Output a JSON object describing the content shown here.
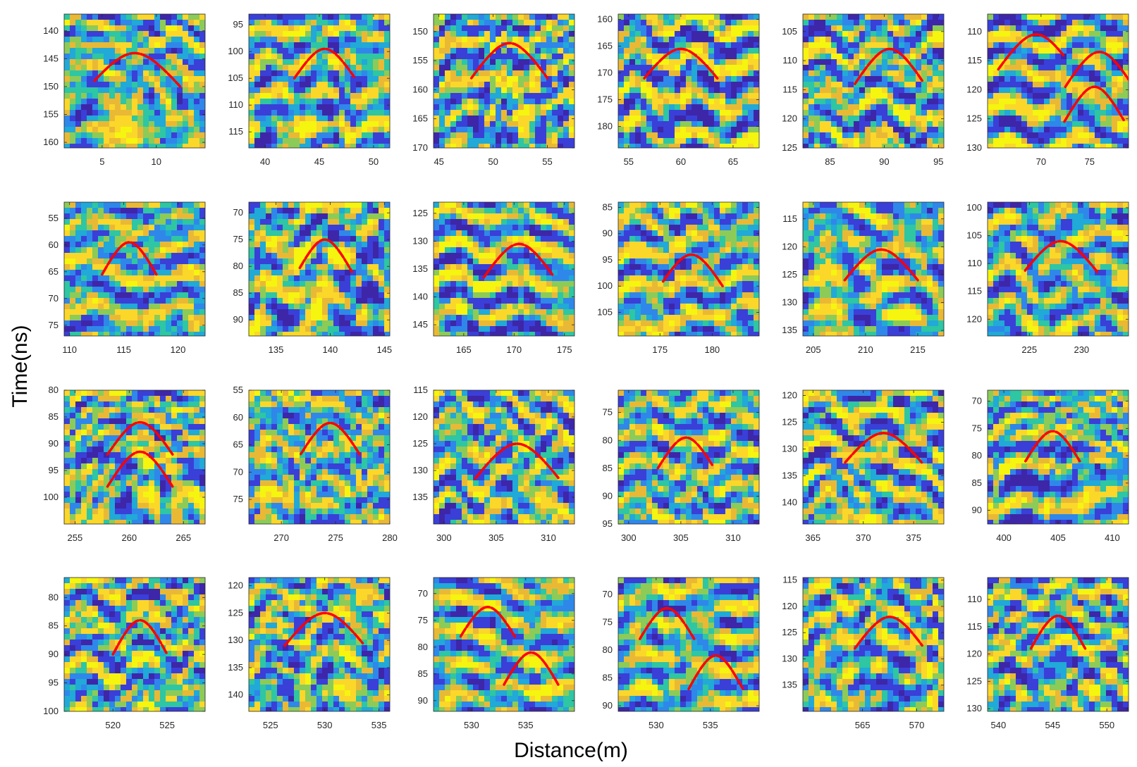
{
  "figure": {
    "xlabel": "Distance(m)",
    "ylabel": "Time(ns)"
  },
  "colors": {
    "curve": "#ff0000",
    "palette": [
      "#3e26a8",
      "#3a3fd8",
      "#2f87ea",
      "#21a9d7",
      "#2ec6a3",
      "#8ccb58",
      "#e9b935",
      "#fbd72a",
      "#f5f50f"
    ]
  },
  "chart_data": [
    {
      "type": "heatmap",
      "row": 0,
      "col": 0,
      "xlim": [
        1.5,
        14.5
      ],
      "ylim": [
        161,
        137
      ],
      "xticks": [
        5,
        10
      ],
      "yticks": [
        140,
        145,
        150,
        155,
        160
      ],
      "curves": [
        {
          "apex_x": 8,
          "apex_y": 144,
          "x_start": 4.3,
          "x_end": 12.2,
          "t_start": 150,
          "t_end": 150
        }
      ]
    },
    {
      "type": "heatmap",
      "row": 0,
      "col": 1,
      "xlim": [
        38.5,
        51.5
      ],
      "ylim": [
        118,
        93
      ],
      "xticks": [
        40,
        45,
        50
      ],
      "yticks": [
        95,
        100,
        105,
        110,
        115
      ],
      "curves": [
        {
          "apex_x": 45.5,
          "apex_y": 99.5,
          "x_start": 42.7,
          "x_end": 48.2,
          "t_start": 105,
          "t_end": 105
        }
      ]
    },
    {
      "type": "heatmap",
      "row": 0,
      "col": 2,
      "xlim": [
        44.5,
        57.5
      ],
      "ylim": [
        170,
        147
      ],
      "xticks": [
        45,
        50,
        55
      ],
      "yticks": [
        150,
        155,
        160,
        165,
        170
      ],
      "curves": [
        {
          "apex_x": 51.5,
          "apex_y": 152,
          "x_start": 48,
          "x_end": 55,
          "t_start": 158,
          "t_end": 158
        }
      ]
    },
    {
      "type": "heatmap",
      "row": 0,
      "col": 3,
      "xlim": [
        54,
        67.5
      ],
      "ylim": [
        184,
        159
      ],
      "xticks": [
        55,
        60,
        65
      ],
      "yticks": [
        160,
        165,
        170,
        175,
        180
      ],
      "curves": [
        {
          "apex_x": 60,
          "apex_y": 165.5,
          "x_start": 56.5,
          "x_end": 63.5,
          "t_start": 171,
          "t_end": 171
        }
      ]
    },
    {
      "type": "heatmap",
      "row": 0,
      "col": 4,
      "xlim": [
        82.5,
        95.5
      ],
      "ylim": [
        125,
        102
      ],
      "xticks": [
        85,
        90,
        95
      ],
      "yticks": [
        105,
        110,
        115,
        120,
        125
      ],
      "curves": [
        {
          "apex_x": 90.5,
          "apex_y": 108,
          "x_start": 87.3,
          "x_end": 93.5,
          "t_start": 114,
          "t_end": 114
        }
      ]
    },
    {
      "type": "heatmap",
      "row": 0,
      "col": 5,
      "xlim": [
        64.5,
        79
      ],
      "ylim": [
        130,
        107
      ],
      "xticks": [
        70,
        75
      ],
      "yticks": [
        110,
        115,
        120,
        125,
        130
      ],
      "curves": [
        {
          "apex_x": 69.5,
          "apex_y": 110.5,
          "x_start": 65.6,
          "x_end": 72.4,
          "t_start": 116.5,
          "t_end": 116.5
        },
        {
          "apex_x": 76,
          "apex_y": 113.5,
          "x_start": 72.5,
          "x_end": 79,
          "t_start": 119.5,
          "t_end": 119.5
        },
        {
          "apex_x": 75.5,
          "apex_y": 119.5,
          "x_start": 72.4,
          "x_end": 78.5,
          "t_start": 125.5,
          "t_end": 125.5
        }
      ]
    },
    {
      "type": "heatmap",
      "row": 1,
      "col": 0,
      "xlim": [
        109.5,
        122.5
      ],
      "ylim": [
        77,
        52
      ],
      "xticks": [
        110,
        115,
        120
      ],
      "yticks": [
        55,
        60,
        65,
        70,
        75
      ],
      "curves": [
        {
          "apex_x": 115.5,
          "apex_y": 59.5,
          "x_start": 113,
          "x_end": 118,
          "t_start": 65.5,
          "t_end": 65.5
        }
      ]
    },
    {
      "type": "heatmap",
      "row": 1,
      "col": 1,
      "xlim": [
        132.5,
        145.5
      ],
      "ylim": [
        93,
        68
      ],
      "xticks": [
        135,
        140,
        145
      ],
      "yticks": [
        70,
        75,
        80,
        85,
        90
      ],
      "curves": [
        {
          "apex_x": 139.5,
          "apex_y": 75,
          "x_start": 137.2,
          "x_end": 142,
          "t_start": 81,
          "t_end": 81
        }
      ]
    },
    {
      "type": "heatmap",
      "row": 1,
      "col": 2,
      "xlim": [
        162,
        176
      ],
      "ylim": [
        147,
        123
      ],
      "xticks": [
        165,
        170,
        175
      ],
      "yticks": [
        125,
        130,
        135,
        140,
        145
      ],
      "curves": [
        {
          "apex_x": 170.5,
          "apex_y": 130.5,
          "x_start": 167,
          "x_end": 173.8,
          "t_start": 136.5,
          "t_end": 136.5
        }
      ]
    },
    {
      "type": "heatmap",
      "row": 1,
      "col": 3,
      "xlim": [
        171,
        184.5
      ],
      "ylim": [
        109.5,
        84
      ],
      "xticks": [
        175,
        180
      ],
      "yticks": [
        85,
        90,
        95,
        100,
        105
      ],
      "curves": [
        {
          "apex_x": 178,
          "apex_y": 94,
          "x_start": 175.3,
          "x_end": 181,
          "t_start": 100,
          "t_end": 100
        }
      ]
    },
    {
      "type": "heatmap",
      "row": 1,
      "col": 4,
      "xlim": [
        204,
        217.5
      ],
      "ylim": [
        136,
        112
      ],
      "xticks": [
        205,
        210,
        215
      ],
      "yticks": [
        115,
        120,
        125,
        130,
        135
      ],
      "curves": [
        {
          "apex_x": 211.5,
          "apex_y": 120.5,
          "x_start": 208,
          "x_end": 215,
          "t_start": 126,
          "t_end": 126
        }
      ]
    },
    {
      "type": "heatmap",
      "row": 1,
      "col": 5,
      "xlim": [
        221,
        234.5
      ],
      "ylim": [
        123,
        99
      ],
      "xticks": [
        225,
        230
      ],
      "yticks": [
        100,
        105,
        110,
        115,
        120
      ],
      "curves": [
        {
          "apex_x": 228,
          "apex_y": 106,
          "x_start": 224.6,
          "x_end": 231.5,
          "t_start": 111.5,
          "t_end": 111.5
        }
      ]
    },
    {
      "type": "heatmap",
      "row": 2,
      "col": 0,
      "xlim": [
        254,
        267
      ],
      "ylim": [
        105,
        80
      ],
      "xticks": [
        255,
        260,
        265
      ],
      "yticks": [
        80,
        85,
        90,
        95,
        100
      ],
      "curves": [
        {
          "apex_x": 261,
          "apex_y": 86,
          "x_start": 258,
          "x_end": 264,
          "t_start": 92,
          "t_end": 92
        },
        {
          "apex_x": 261,
          "apex_y": 91.5,
          "x_start": 258,
          "x_end": 264,
          "t_start": 98,
          "t_end": 98
        }
      ]
    },
    {
      "type": "heatmap",
      "row": 2,
      "col": 1,
      "xlim": [
        267,
        280
      ],
      "ylim": [
        79.5,
        55
      ],
      "xticks": [
        270,
        275,
        280
      ],
      "yticks": [
        55,
        60,
        65,
        70,
        75
      ],
      "curves": [
        {
          "apex_x": 274.5,
          "apex_y": 61,
          "x_start": 271.8,
          "x_end": 277.3,
          "t_start": 67,
          "t_end": 67
        }
      ]
    },
    {
      "type": "heatmap",
      "row": 2,
      "col": 2,
      "xlim": [
        299,
        312.5
      ],
      "ylim": [
        140,
        115
      ],
      "xticks": [
        300,
        305,
        310
      ],
      "yticks": [
        115,
        120,
        125,
        130,
        135
      ],
      "curves": [
        {
          "apex_x": 307,
          "apex_y": 125,
          "x_start": 303,
          "x_end": 311,
          "t_start": 131.5,
          "t_end": 131.5
        }
      ]
    },
    {
      "type": "heatmap",
      "row": 2,
      "col": 3,
      "xlim": [
        299,
        312.5
      ],
      "ylim": [
        95,
        71
      ],
      "xticks": [
        300,
        305,
        310
      ],
      "yticks": [
        75,
        80,
        85,
        90,
        95
      ],
      "curves": [
        {
          "apex_x": 305.5,
          "apex_y": 79.5,
          "x_start": 302.8,
          "x_end": 308,
          "t_start": 85,
          "t_end": 85
        }
      ]
    },
    {
      "type": "heatmap",
      "row": 2,
      "col": 4,
      "xlim": [
        364,
        378
      ],
      "ylim": [
        144,
        119
      ],
      "xticks": [
        365,
        370,
        375
      ],
      "yticks": [
        120,
        125,
        130,
        135,
        140
      ],
      "curves": [
        {
          "apex_x": 372,
          "apex_y": 127,
          "x_start": 368.2,
          "x_end": 375.8,
          "t_start": 132.5,
          "t_end": 132.5
        }
      ]
    },
    {
      "type": "heatmap",
      "row": 2,
      "col": 5,
      "xlim": [
        398.5,
        411.5
      ],
      "ylim": [
        92.5,
        68
      ],
      "xticks": [
        400,
        405,
        410
      ],
      "yticks": [
        70,
        75,
        80,
        85,
        90
      ],
      "curves": [
        {
          "apex_x": 404.5,
          "apex_y": 75.5,
          "x_start": 402,
          "x_end": 407,
          "t_start": 81,
          "t_end": 81
        }
      ]
    },
    {
      "type": "heatmap",
      "row": 3,
      "col": 0,
      "xlim": [
        515.5,
        528.5
      ],
      "ylim": [
        100,
        76.5
      ],
      "xticks": [
        520,
        525
      ],
      "yticks": [
        80,
        85,
        90,
        95,
        100
      ],
      "curves": [
        {
          "apex_x": 522.5,
          "apex_y": 84,
          "x_start": 520,
          "x_end": 525,
          "t_start": 90,
          "t_end": 90
        }
      ]
    },
    {
      "type": "heatmap",
      "row": 3,
      "col": 1,
      "xlim": [
        523,
        536
      ],
      "ylim": [
        143,
        118.5
      ],
      "xticks": [
        525,
        530,
        535
      ],
      "yticks": [
        120,
        125,
        130,
        135,
        140
      ],
      "curves": [
        {
          "apex_x": 530,
          "apex_y": 125,
          "x_start": 526.3,
          "x_end": 533.5,
          "t_start": 131,
          "t_end": 131
        }
      ]
    },
    {
      "type": "heatmap",
      "row": 3,
      "col": 2,
      "xlim": [
        526.5,
        539.5
      ],
      "ylim": [
        92,
        67
      ],
      "xticks": [
        530,
        535
      ],
      "yticks": [
        70,
        75,
        80,
        85,
        90
      ],
      "curves": [
        {
          "apex_x": 531.5,
          "apex_y": 72.5,
          "x_start": 529,
          "x_end": 534,
          "t_start": 78,
          "t_end": 78
        },
        {
          "apex_x": 535.5,
          "apex_y": 81,
          "x_start": 533,
          "x_end": 538,
          "t_start": 87,
          "t_end": 87
        }
      ]
    },
    {
      "type": "heatmap",
      "row": 3,
      "col": 3,
      "xlim": [
        526.5,
        539.5
      ],
      "ylim": [
        91,
        67
      ],
      "xticks": [
        530,
        535
      ],
      "yticks": [
        70,
        75,
        80,
        85,
        90
      ],
      "curves": [
        {
          "apex_x": 531,
          "apex_y": 72.5,
          "x_start": 528.5,
          "x_end": 533.5,
          "t_start": 78,
          "t_end": 78
        },
        {
          "apex_x": 535.5,
          "apex_y": 81,
          "x_start": 533,
          "x_end": 538,
          "t_start": 87,
          "t_end": 87
        }
      ]
    },
    {
      "type": "heatmap",
      "row": 3,
      "col": 4,
      "xlim": [
        559.5,
        572.5
      ],
      "ylim": [
        140,
        114.5
      ],
      "xticks": [
        565,
        570
      ],
      "yticks": [
        115,
        120,
        125,
        130,
        135
      ],
      "curves": [
        {
          "apex_x": 567.5,
          "apex_y": 122,
          "x_start": 564.3,
          "x_end": 570.5,
          "t_start": 128,
          "t_end": 128
        }
      ]
    },
    {
      "type": "heatmap",
      "row": 3,
      "col": 5,
      "xlim": [
        539,
        552
      ],
      "ylim": [
        130.5,
        106
      ],
      "xticks": [
        540,
        545,
        550
      ],
      "yticks": [
        110,
        115,
        120,
        125,
        130
      ],
      "curves": [
        {
          "apex_x": 545.5,
          "apex_y": 113,
          "x_start": 543,
          "x_end": 548,
          "t_start": 119,
          "t_end": 119
        }
      ]
    }
  ]
}
